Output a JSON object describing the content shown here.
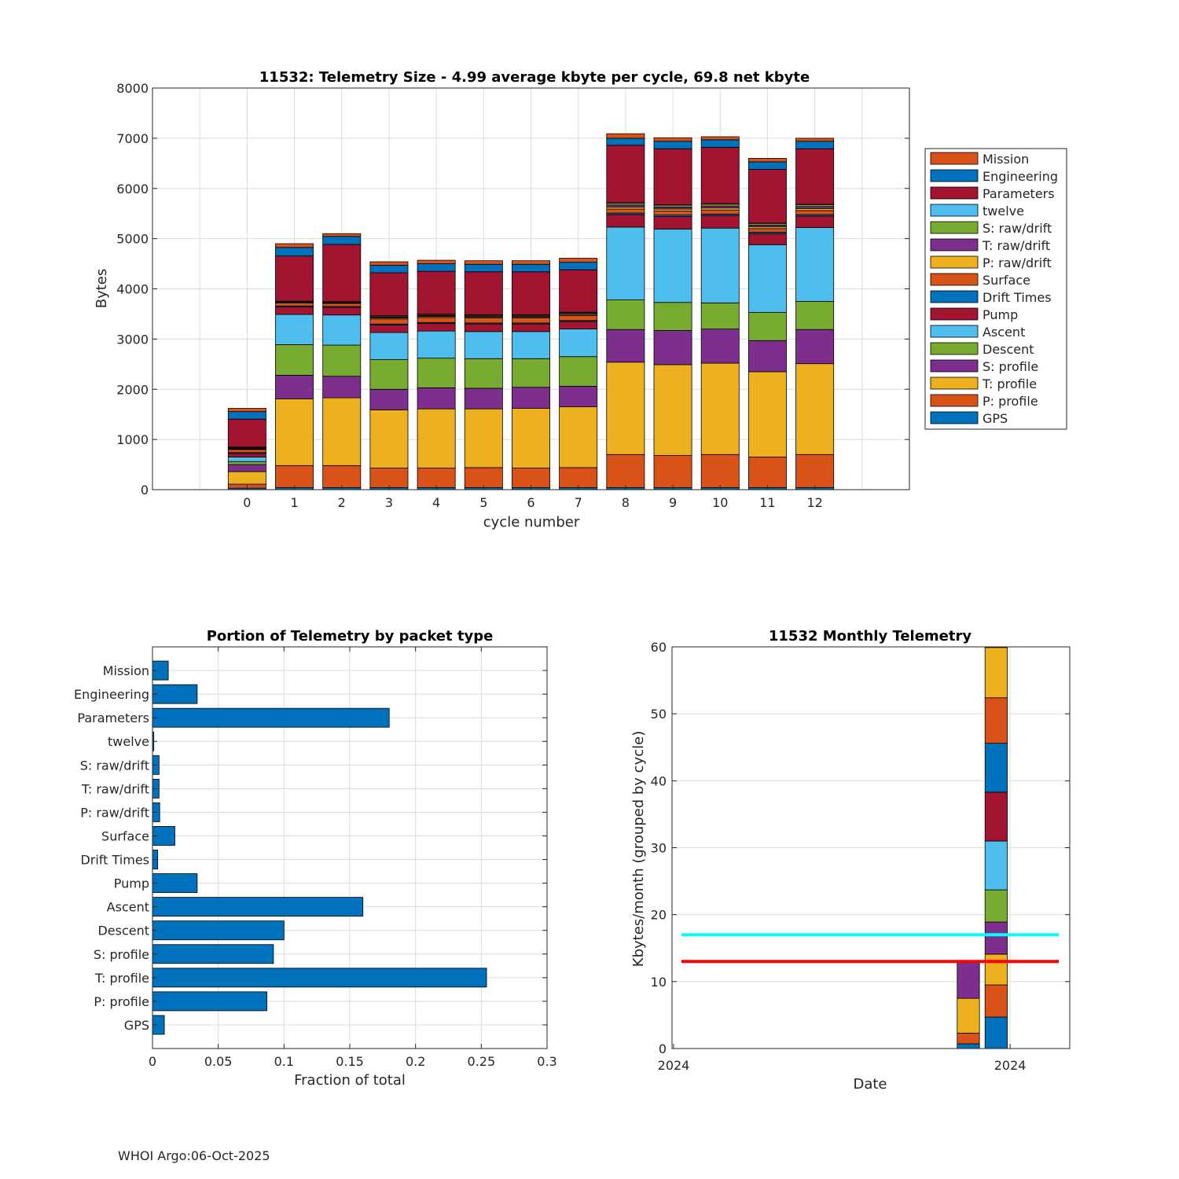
{
  "colors": {
    "GPS": "#0072BD",
    "P: profile": "#D95319",
    "T: profile": "#EDB120",
    "S: profile": "#7E2F8E",
    "Descent": "#77AC30",
    "Ascent": "#4DBEEE",
    "Pump": "#A2142F",
    "Drift Times": "#0072BD",
    "Surface": "#D95319",
    "P: raw/drift": "#EDB120",
    "T: raw/drift": "#7E2F8E",
    "S: raw/drift": "#77AC30",
    "twelve": "#4DBEEE",
    "Parameters": "#A2142F",
    "Engineering": "#0072BD",
    "Mission": "#D95319",
    "line_upper": "#00FFFF",
    "line_lower": "#FF0000",
    "hbar": "#0072BD"
  },
  "chart_data": [
    {
      "id": "telemetry-size",
      "type": "bar",
      "stacked": true,
      "title": "11532: Telemetry Size - 4.99 average kbyte per cycle,   69.8 net kbyte",
      "xlabel": "cycle number",
      "ylabel": "Bytes",
      "xlim": [
        -2,
        14
      ],
      "ylim": [
        0,
        8000
      ],
      "yticks": [
        0,
        1000,
        2000,
        3000,
        4000,
        5000,
        6000,
        7000,
        8000
      ],
      "grid": true,
      "legend_position": "outside-right",
      "categories": [
        "0",
        "1",
        "2",
        "3",
        "4",
        "5",
        "6",
        "7",
        "8",
        "9",
        "10",
        "11",
        "12"
      ],
      "series": [
        {
          "name": "GPS",
          "values": [
            30,
            40,
            40,
            40,
            40,
            40,
            40,
            40,
            40,
            40,
            40,
            40,
            40
          ]
        },
        {
          "name": "P: profile",
          "values": [
            80,
            440,
            440,
            390,
            390,
            400,
            390,
            400,
            660,
            640,
            660,
            610,
            660
          ]
        },
        {
          "name": "T: profile",
          "values": [
            250,
            1330,
            1350,
            1160,
            1180,
            1170,
            1190,
            1210,
            1840,
            1810,
            1820,
            1700,
            1810
          ]
        },
        {
          "name": "S: profile",
          "values": [
            140,
            470,
            430,
            410,
            420,
            410,
            420,
            410,
            650,
            680,
            680,
            620,
            680
          ]
        },
        {
          "name": "Descent",
          "values": [
            60,
            610,
            620,
            590,
            590,
            590,
            570,
            590,
            590,
            560,
            520,
            560,
            560
          ]
        },
        {
          "name": "Ascent",
          "values": [
            90,
            600,
            600,
            540,
            540,
            540,
            540,
            550,
            1450,
            1460,
            1490,
            1350,
            1470
          ]
        },
        {
          "name": "Pump",
          "values": [
            70,
            150,
            150,
            150,
            150,
            150,
            150,
            150,
            250,
            250,
            250,
            220,
            230
          ]
        },
        {
          "name": "Drift Times",
          "values": [
            20,
            20,
            20,
            20,
            20,
            20,
            20,
            20,
            30,
            30,
            30,
            30,
            30
          ]
        },
        {
          "name": "Surface",
          "values": [
            60,
            60,
            60,
            100,
            100,
            100,
            100,
            100,
            80,
            80,
            80,
            70,
            80
          ]
        },
        {
          "name": "P: raw/drift",
          "values": [
            15,
            10,
            10,
            20,
            20,
            20,
            20,
            20,
            40,
            40,
            40,
            35,
            40
          ]
        },
        {
          "name": "T: raw/drift",
          "values": [
            15,
            10,
            10,
            20,
            20,
            20,
            20,
            20,
            40,
            40,
            40,
            35,
            40
          ]
        },
        {
          "name": "S: raw/drift",
          "values": [
            15,
            10,
            10,
            20,
            20,
            20,
            20,
            20,
            40,
            40,
            40,
            35,
            40
          ]
        },
        {
          "name": "twelve",
          "values": [
            5,
            5,
            5,
            5,
            5,
            5,
            5,
            5,
            5,
            5,
            5,
            5,
            5
          ]
        },
        {
          "name": "Parameters",
          "values": [
            555,
            900,
            1140,
            855,
            855,
            855,
            855,
            845,
            1145,
            1115,
            1125,
            1070,
            1105
          ]
        },
        {
          "name": "Engineering",
          "values": [
            150,
            170,
            160,
            150,
            150,
            150,
            150,
            150,
            140,
            150,
            150,
            150,
            150
          ]
        },
        {
          "name": "Mission",
          "values": [
            65,
            75,
            55,
            70,
            70,
            70,
            70,
            80,
            90,
            70,
            60,
            70,
            60
          ]
        }
      ],
      "legend_order": [
        "Mission",
        "Engineering",
        "Parameters",
        "twelve",
        "S: raw/drift",
        "T: raw/drift",
        "P: raw/drift",
        "Surface",
        "Drift Times",
        "Pump",
        "Ascent",
        "Descent",
        "S: profile",
        "T: profile",
        "P: profile",
        "GPS"
      ]
    },
    {
      "id": "portion-by-packet",
      "type": "bar",
      "orientation": "horizontal",
      "title": "Portion of Telemetry by packet type",
      "xlabel": "Fraction of total",
      "ylabel": "",
      "xlim": [
        0,
        0.3
      ],
      "xticks": [
        0,
        0.05,
        0.1,
        0.15,
        0.2,
        0.25,
        0.3
      ],
      "xtick_labels": [
        "0",
        "0.05",
        "0.1",
        "0.15",
        "0.2",
        "0.25",
        "0.3"
      ],
      "grid": true,
      "categories": [
        "Mission",
        "Engineering",
        "Parameters",
        "twelve",
        "S: raw/drift",
        "T: raw/drift",
        "P: raw/drift",
        "Surface",
        "Drift Times",
        "Pump",
        "Ascent",
        "Descent",
        "S: profile",
        "T: profile",
        "P: profile",
        "GPS"
      ],
      "values": [
        0.012,
        0.034,
        0.18,
        0.001,
        0.005,
        0.005,
        0.0055,
        0.017,
        0.004,
        0.034,
        0.16,
        0.1,
        0.092,
        0.254,
        0.087,
        0.009
      ]
    },
    {
      "id": "monthly-telemetry",
      "type": "bar",
      "stacked": true,
      "title": "11532 Monthly Telemetry",
      "xlabel": "Date",
      "ylabel": "Kbytes/month (grouped by cycle)",
      "ylim": [
        0,
        60
      ],
      "yticks": [
        0,
        10,
        20,
        30,
        40,
        50,
        60
      ],
      "xtick_labels": [
        "2024",
        "2024"
      ],
      "grid": true,
      "bars": [
        {
          "segments": [
            {
              "value": 0.7,
              "color": "#0072BD"
            },
            {
              "value": 1.6,
              "color": "#D95319"
            },
            {
              "value": 5.2,
              "color": "#EDB120"
            },
            {
              "value": 5.6,
              "color": "#7E2F8E"
            }
          ]
        },
        {
          "segments": [
            {
              "value": 4.7,
              "color": "#0072BD"
            },
            {
              "value": 4.8,
              "color": "#D95319"
            },
            {
              "value": 4.6,
              "color": "#EDB120"
            },
            {
              "value": 4.8,
              "color": "#7E2F8E"
            },
            {
              "value": 4.8,
              "color": "#77AC30"
            },
            {
              "value": 7.3,
              "color": "#4DBEEE"
            },
            {
              "value": 7.3,
              "color": "#A2142F"
            },
            {
              "value": 7.3,
              "color": "#0072BD"
            },
            {
              "value": 6.8,
              "color": "#D95319"
            },
            {
              "value": 7.5,
              "color": "#EDB120"
            }
          ]
        }
      ],
      "hlines": [
        {
          "value": 17,
          "color": "#00FFFF"
        },
        {
          "value": 13,
          "color": "#FF0000"
        }
      ]
    }
  ],
  "footer": "WHOI Argo:06-Oct-2025"
}
